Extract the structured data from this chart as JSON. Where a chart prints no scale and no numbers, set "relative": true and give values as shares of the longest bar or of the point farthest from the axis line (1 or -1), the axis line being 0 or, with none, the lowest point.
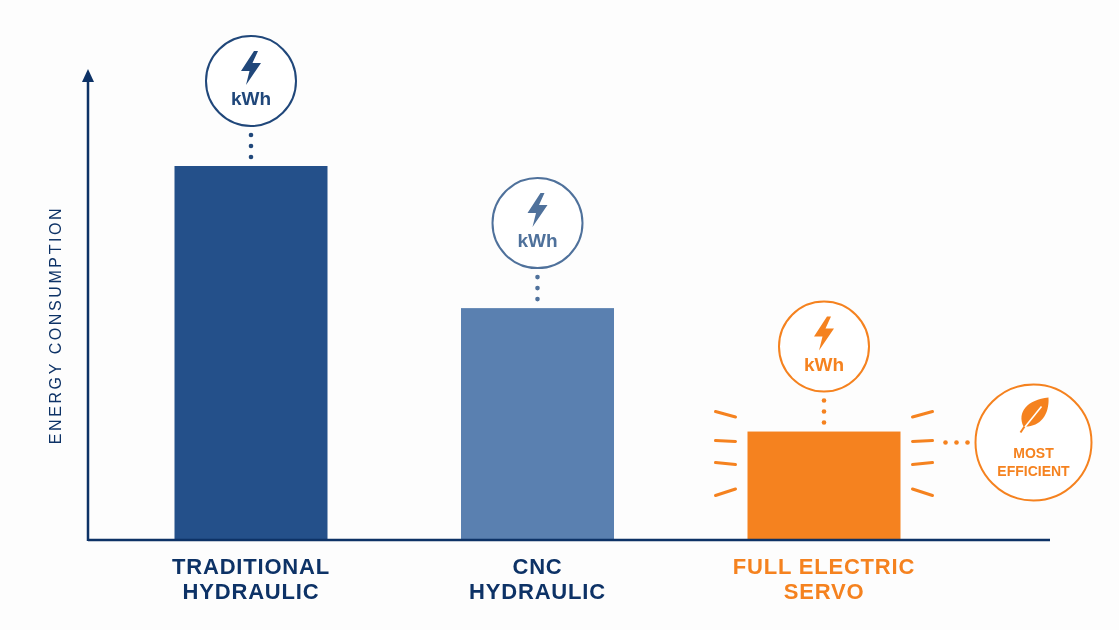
{
  "chart_data": {
    "type": "bar",
    "ylabel": "ENERGY CONSUMPTION",
    "categories": [
      "TRADITIONAL HYDRAULIC",
      "CNC HYDRAULIC",
      "FULL ELECTRIC SERVO"
    ],
    "values": [
      1,
      0.62,
      0.29
    ],
    "colors": [
      "#24508a",
      "#5a80b0",
      "#f5821f"
    ],
    "relative": true,
    "annotations": [
      "kWh",
      "kWh",
      "kWh",
      "MOST EFFICIENT"
    ]
  }
}
